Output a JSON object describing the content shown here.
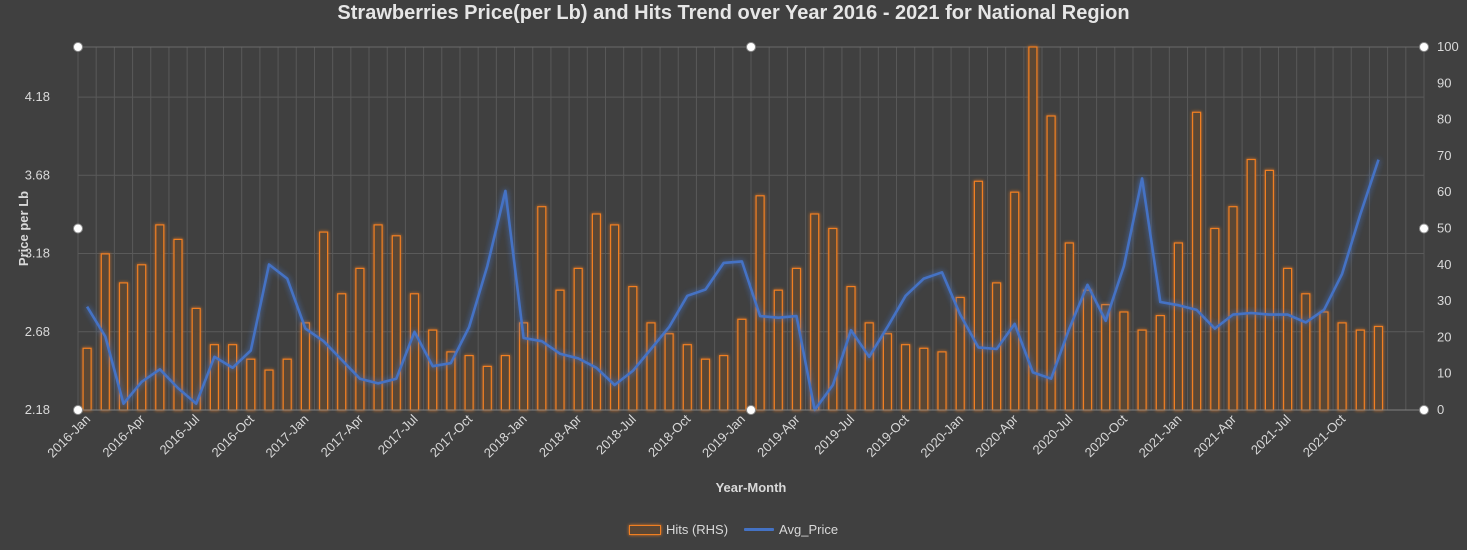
{
  "chart_data": {
    "type": "bar+line",
    "title": "Strawberries Price(per Lb) and Hits Trend over Year 2016 - 2021 for National Region",
    "xlabel": "Year-Month",
    "ylabel": "Price per Lb",
    "y_left_ticks": [
      "2.18",
      "2.68",
      "3.18",
      "3.68",
      "4.18"
    ],
    "y_left_range": [
      2.18,
      4.5
    ],
    "y_right_ticks": [
      "0",
      "10",
      "20",
      "30",
      "40",
      "50",
      "60",
      "70",
      "80",
      "90",
      "100"
    ],
    "y_right_range": [
      0,
      100
    ],
    "x_tick_labels": [
      "2016-Jan",
      "2016-Apr",
      "2016-Jul",
      "2016-Oct",
      "2017-Jan",
      "2017-Apr",
      "2017-Jul",
      "2017-Oct",
      "2018-Jan",
      "2018-Apr",
      "2018-Jul",
      "2018-Oct",
      "2019-Jan",
      "2019-Apr",
      "2019-Jul",
      "2019-Oct",
      "2020-Jan",
      "2020-Apr",
      "2020-Jul",
      "2020-Oct",
      "2021-Jan",
      "2021-Apr",
      "2021-Jul",
      "2021-Oct"
    ],
    "colors": {
      "hits": "#f07f22",
      "price": "#4472c4",
      "background": "#404040",
      "grid": "#5a5a5a"
    },
    "series": [
      {
        "name": "Hits (RHS)",
        "type": "bar",
        "axis": "right",
        "values": [
          17,
          43,
          35,
          40,
          51,
          47,
          28,
          18,
          18,
          14,
          11,
          14,
          24,
          49,
          32,
          39,
          51,
          48,
          32,
          22,
          16,
          15,
          12,
          15,
          24,
          56,
          33,
          39,
          54,
          51,
          34,
          24,
          21,
          18,
          14,
          15,
          25,
          59,
          33,
          39,
          54,
          50,
          34,
          24,
          21,
          18,
          17,
          16,
          31,
          63,
          35,
          60,
          100,
          81,
          46,
          33,
          29,
          27,
          22,
          26,
          46,
          82,
          50,
          56,
          69,
          66,
          39,
          32,
          27,
          24,
          22,
          23
        ],
        "grid_tail": 2
      },
      {
        "name": "Avg_Price",
        "type": "line",
        "axis": "left",
        "values": [
          2.84,
          2.65,
          2.22,
          2.36,
          2.44,
          2.32,
          2.22,
          2.52,
          2.45,
          2.56,
          3.11,
          3.02,
          2.7,
          2.62,
          2.5,
          2.38,
          2.35,
          2.38,
          2.68,
          2.46,
          2.48,
          2.71,
          3.1,
          3.58,
          2.64,
          2.62,
          2.54,
          2.51,
          2.45,
          2.34,
          2.43,
          2.57,
          2.71,
          2.91,
          2.95,
          3.12,
          3.13,
          2.78,
          2.77,
          2.78,
          2.18,
          2.34,
          2.69,
          2.52,
          2.71,
          2.91,
          3.02,
          3.06,
          2.79,
          2.58,
          2.57,
          2.73,
          2.42,
          2.38,
          2.7,
          2.98,
          2.75,
          3.1,
          3.66,
          2.87,
          2.85,
          2.82,
          2.7,
          2.79,
          2.8,
          2.79,
          2.79,
          2.74,
          2.82,
          3.05,
          3.43,
          3.78
        ]
      }
    ]
  }
}
